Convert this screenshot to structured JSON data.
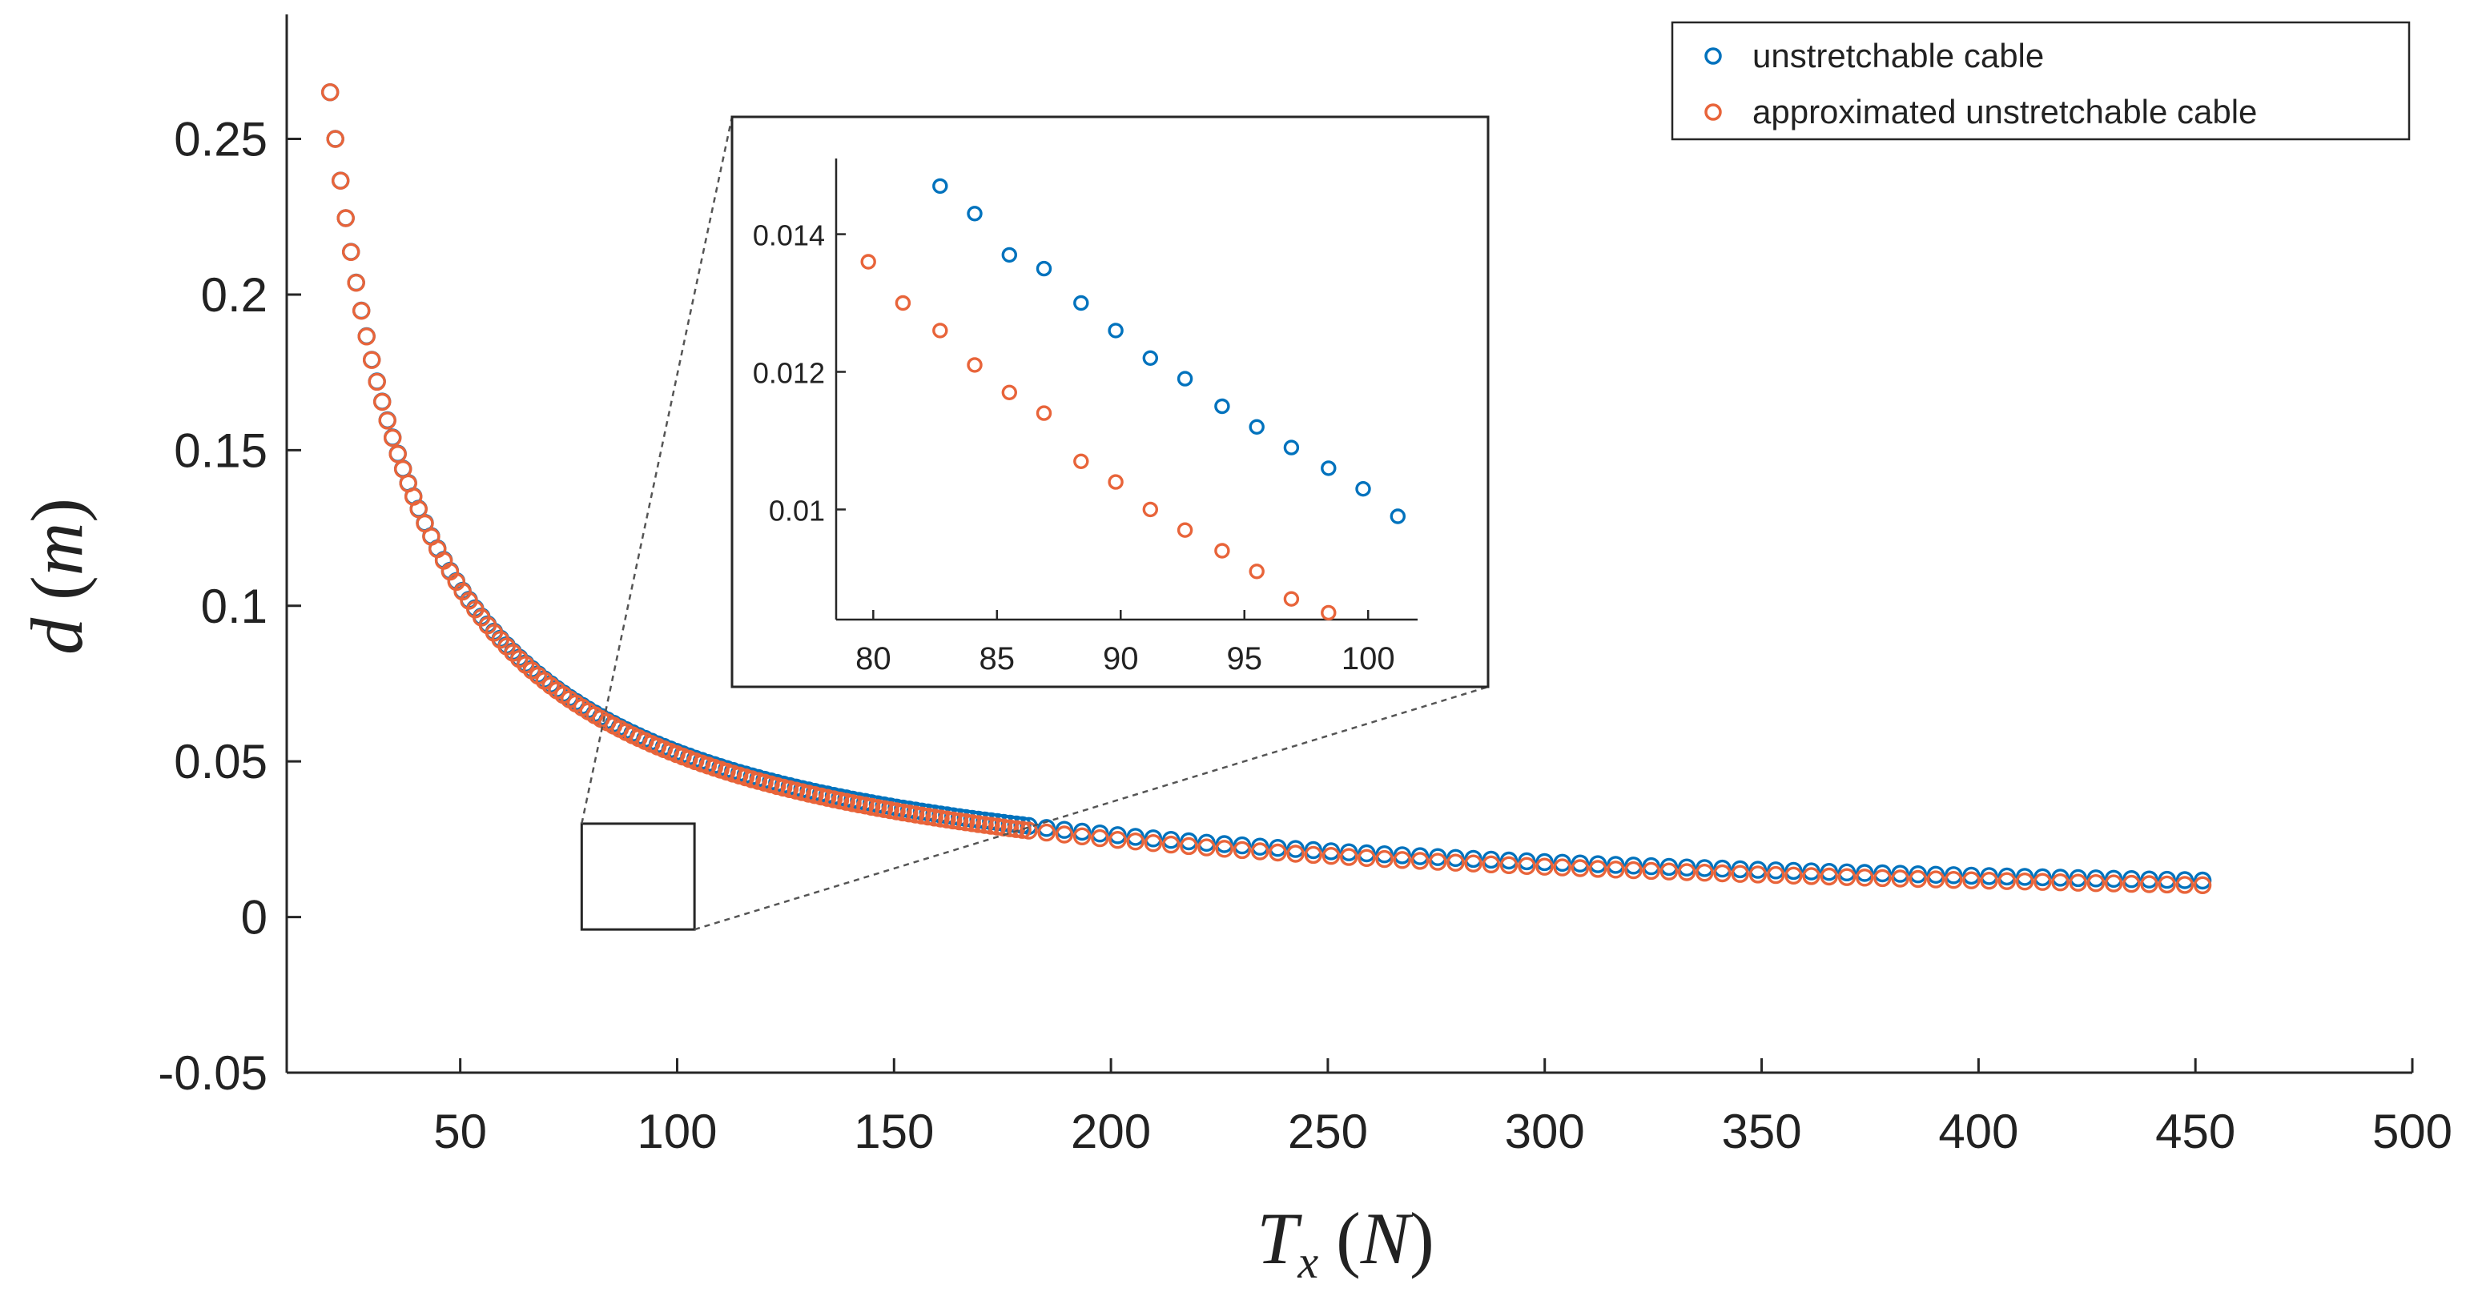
{
  "chart_data": {
    "type": "scatter",
    "title": "",
    "xlabel": {
      "var": "T",
      "sub": "x",
      "unit": "N"
    },
    "ylabel": {
      "var": "d",
      "unit": "m"
    },
    "xlim": [
      10,
      500
    ],
    "ylim": [
      -0.05,
      0.29
    ],
    "xticks": [
      50,
      100,
      150,
      200,
      250,
      300,
      350,
      400,
      450,
      500
    ],
    "yticks": [
      -0.05,
      0,
      0.05,
      0.1,
      0.15,
      0.2,
      0.25
    ],
    "ytick_labels": [
      "-0.05",
      "0",
      "0.05",
      "0.1",
      "0.15",
      "0.2",
      "0.25"
    ],
    "grid": false,
    "legend_position": "top-right",
    "series": [
      {
        "name": "unstretchable cable",
        "color": "#0072BD",
        "model": "inverse",
        "k": 1.0,
        "c": 0.0,
        "x_start": 20,
        "x_end": 453
      },
      {
        "name": "approximated unstretchable cable",
        "color": "#E8643A",
        "model": "inverse-offset",
        "k": 1.0,
        "c": 0.0,
        "x_start": 20,
        "x_end": 453
      }
    ],
    "zoom_region": {
      "x": [
        78,
        104
      ],
      "y": [
        -0.004,
        0.03
      ]
    },
    "inset": {
      "xlim": [
        78.5,
        102
      ],
      "ylim": [
        0.0084,
        0.0151
      ],
      "xticks": [
        80,
        85,
        90,
        95,
        100
      ],
      "yticks": [
        0.01,
        0.012,
        0.014
      ],
      "ytick_labels": [
        "0.01",
        "0.012",
        "0.014"
      ],
      "points": [
        {
          "series": 0,
          "x": [
            82.7,
            84.1,
            85.5,
            86.9,
            88.4,
            89.8,
            91.2,
            92.6,
            94.1,
            95.5,
            96.9,
            98.4,
            99.8,
            101.2
          ],
          "y": [
            0.0147,
            0.0143,
            0.0137,
            0.0135,
            0.013,
            0.0126,
            0.0122,
            0.0119,
            0.0115,
            0.0112,
            0.0109,
            0.0106,
            0.0103,
            0.0099
          ]
        },
        {
          "series": 1,
          "x": [
            79.8,
            81.2,
            82.7,
            84.1,
            85.5,
            86.9,
            88.4,
            89.8,
            91.2,
            92.6,
            94.1,
            95.5,
            96.9,
            98.4
          ],
          "y": [
            0.0136,
            0.013,
            0.0126,
            0.0121,
            0.0117,
            0.0114,
            0.0107,
            0.0104,
            0.01,
            0.0097,
            0.0094,
            0.0091,
            0.0087,
            0.0085
          ]
        }
      ]
    }
  }
}
